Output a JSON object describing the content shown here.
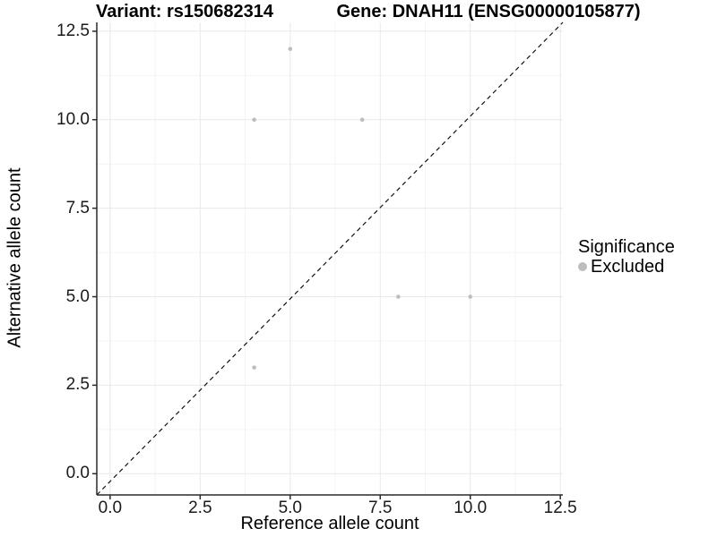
{
  "chart_data": {
    "type": "scatter",
    "title_left": "Variant: rs150682314",
    "title_right": "Gene: DNAH11 (ENSG00000105877)",
    "xlabel": "Reference allele count",
    "ylabel": "Alternative allele count",
    "xlim": [
      -0.37,
      12.57
    ],
    "ylim": [
      -0.6,
      12.75
    ],
    "x_ticks": [
      0,
      2.5,
      5,
      7.5,
      10,
      12.5
    ],
    "x_tick_labels": [
      "0.0",
      "2.5",
      "5.0",
      "7.5",
      "10.0",
      "12.5"
    ],
    "y_ticks": [
      0,
      2.5,
      5,
      7.5,
      10,
      12.5
    ],
    "y_tick_labels": [
      "0.0",
      "2.5",
      "5.0",
      "7.5",
      "10.0",
      "12.5"
    ],
    "minor_ticks": [
      1.25,
      3.75,
      6.25,
      8.75,
      11.25
    ],
    "grid": "major-and-minor",
    "series": [
      {
        "name": "Excluded",
        "point_color": "#bdbdbd",
        "points": [
          [
            4,
            3
          ],
          [
            4,
            10
          ],
          [
            5,
            12
          ],
          [
            7,
            10
          ],
          [
            8,
            5
          ],
          [
            10,
            5
          ]
        ]
      }
    ],
    "reference_line": {
      "type": "identity",
      "style": "dashed",
      "color": "#111111"
    },
    "legend": {
      "title": "Significance",
      "position": "right",
      "items": [
        {
          "label": "Excluded",
          "color": "#bdbdbd"
        }
      ]
    },
    "colors": {
      "panel_background": "#ffffff",
      "grid_major": "#e8e8e8",
      "grid_minor": "#f4f4f4",
      "axis_line": "#2a2a2a",
      "tick_mark": "#2a2a2a",
      "text": "#000000"
    }
  }
}
